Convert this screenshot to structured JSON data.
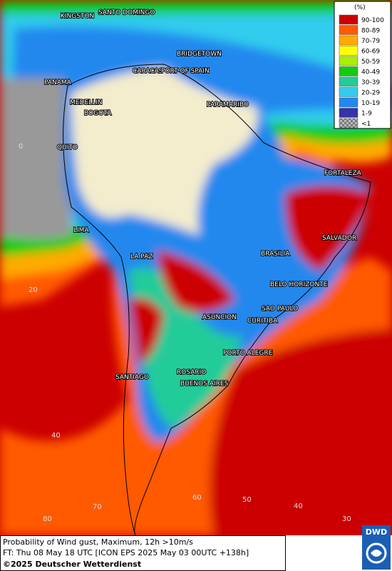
{
  "map": {
    "cities": [
      "KINGSTON",
      "SANTO DOMINGO",
      "BRIDGETOWN",
      "CARACAS",
      "PORT OF SPAIN",
      "PANAMA",
      "MEDELLIN",
      "BOGOTA",
      "PARAMARIBO",
      "QUITO",
      "FORTALEZA",
      "LIMA",
      "SALVADOR",
      "BRASILIA",
      "LA PAZ",
      "BELO HORIZONTE",
      "SAO PAULO",
      "ASUNCION",
      "CURITIBA",
      "PORTO ALEGRE",
      "ROSARIO",
      "SANTIAGO",
      "BUENOS AIRES"
    ],
    "latitude_labels": [
      "0",
      "20",
      "40"
    ],
    "longitude_labels": [
      "80",
      "70",
      "60",
      "50",
      "40",
      "30"
    ]
  },
  "legend": {
    "title": "(%)",
    "items": [
      {
        "label": "90-100",
        "color": "#cc0000"
      },
      {
        "label": "80-89",
        "color": "#ff5a00"
      },
      {
        "label": "70-79",
        "color": "#ffaa00"
      },
      {
        "label": "60-69",
        "color": "#ffff00"
      },
      {
        "label": "50-59",
        "color": "#aaee00"
      },
      {
        "label": "40-49",
        "color": "#11cc11"
      },
      {
        "label": "30-39",
        "color": "#22cc99"
      },
      {
        "label": "20-29",
        "color": "#33ccee"
      },
      {
        "label": "10-19",
        "color": "#2288ee"
      },
      {
        "label": "1-9",
        "color": "#3333aa"
      },
      {
        "label": "<1",
        "color": "#999999"
      }
    ]
  },
  "caption": {
    "line1": "Probability of Wind gust, Maximum, 12h >10m/s",
    "line2": "FT: Thu 08 May 18 UTC [ICON EPS 2025 May 03 00UTC +138h]",
    "line3": "©2025 Deutscher Wetterdienst"
  },
  "logo": "DWD"
}
